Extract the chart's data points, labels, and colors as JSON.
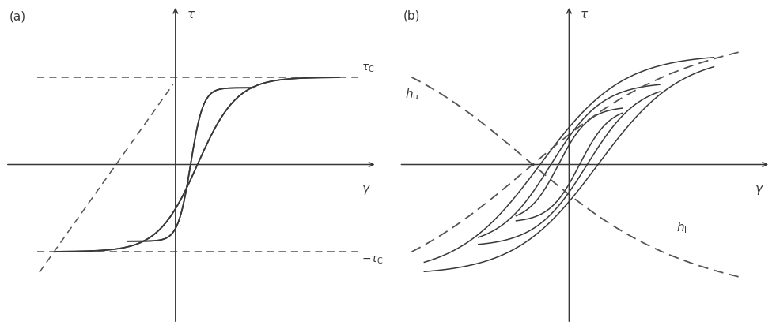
{
  "fig_width": 9.81,
  "fig_height": 4.17,
  "dpi": 100,
  "bg_color": "#ffffff",
  "line_color": "#383838",
  "dashed_color": "#555555",
  "panel_a_label": "(a)",
  "panel_b_label": "(b)"
}
